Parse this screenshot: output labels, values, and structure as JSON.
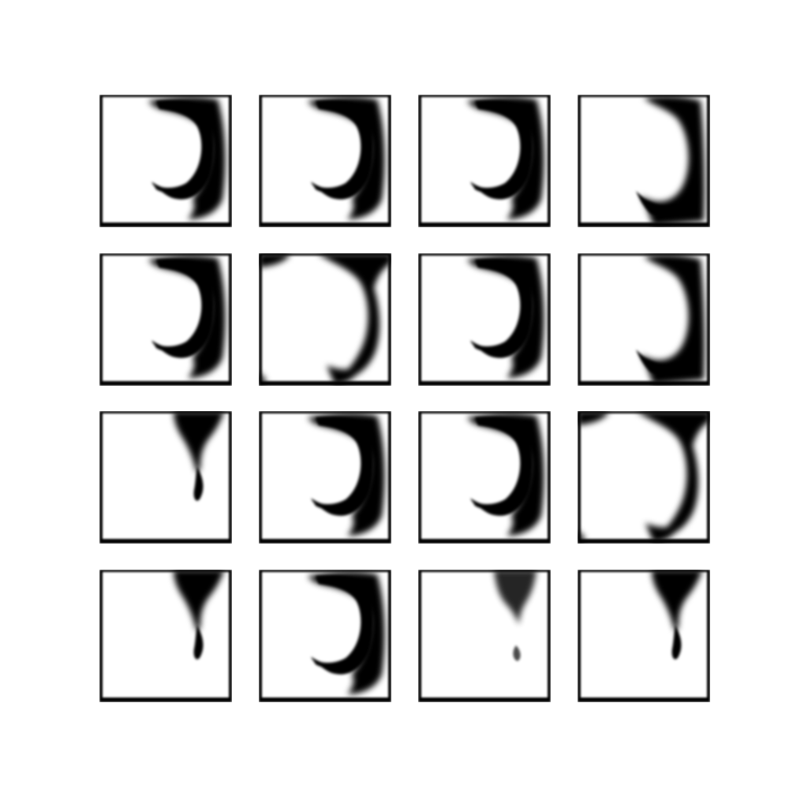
{
  "grid": {
    "rows": 4,
    "cols": 4
  },
  "samples": [
    {
      "pattern": "crescent-a"
    },
    {
      "pattern": "crescent-a"
    },
    {
      "pattern": "crescent-a"
    },
    {
      "pattern": "crescent-b"
    },
    {
      "pattern": "crescent-a"
    },
    {
      "pattern": "crescent-c"
    },
    {
      "pattern": "crescent-a"
    },
    {
      "pattern": "crescent-b"
    },
    {
      "pattern": "funnel"
    },
    {
      "pattern": "crescent-a"
    },
    {
      "pattern": "crescent-a"
    },
    {
      "pattern": "crescent-c"
    },
    {
      "pattern": "funnel"
    },
    {
      "pattern": "crescent-a"
    },
    {
      "pattern": "funnel-faint"
    },
    {
      "pattern": "funnel"
    }
  ]
}
